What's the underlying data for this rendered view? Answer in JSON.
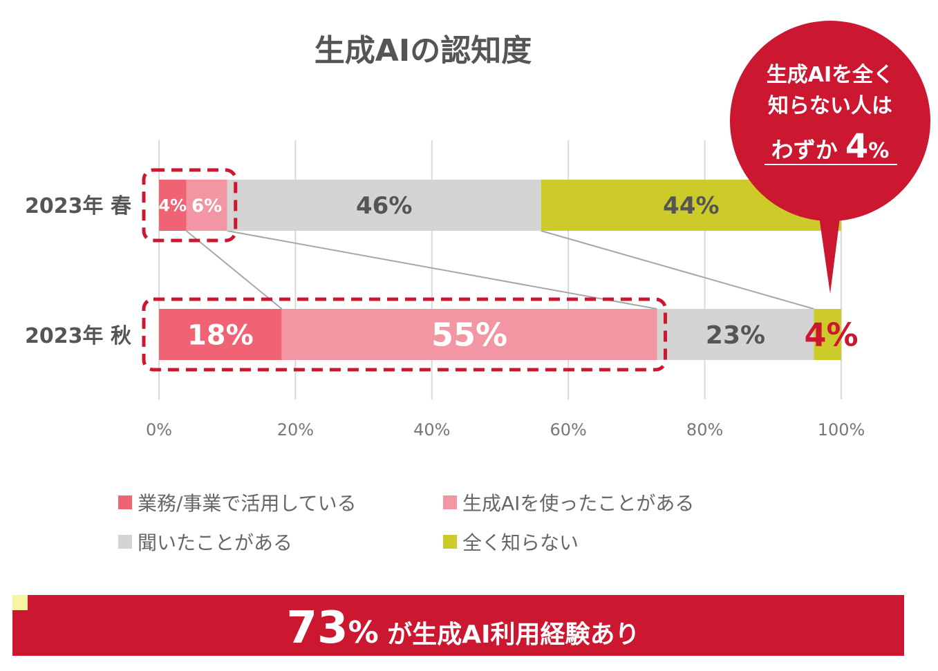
{
  "chart_data": {
    "type": "bar",
    "orientation": "horizontal",
    "stacked": true,
    "title": "生成AIの認知度",
    "categories": [
      "2023年 春",
      "2023年 秋"
    ],
    "series": [
      {
        "name": "業務/事業で活用している",
        "values": [
          4,
          18
        ],
        "color": "#f06374"
      },
      {
        "name": "生成AIを使ったことがある",
        "values": [
          6,
          55
        ],
        "color": "#f396a3"
      },
      {
        "name": "聞いたことがある",
        "values": [
          46,
          23
        ],
        "color": "#d4d4d4"
      },
      {
        "name": "全く知らない",
        "values": [
          44,
          4
        ],
        "color": "#cccb2a"
      }
    ],
    "data_labels": [
      [
        "4%",
        "6%",
        "46%",
        "44%"
      ],
      [
        "18%",
        "55%",
        "23%",
        "4%"
      ]
    ],
    "xlim": [
      0,
      100
    ],
    "x_ticks": [
      "0%",
      "20%",
      "40%",
      "60%",
      "80%",
      "100%"
    ],
    "grid": true,
    "legend": "bottom"
  },
  "callout": {
    "line1": "生成AIを全く",
    "line2": "知らない人は",
    "line3_text": "わずか",
    "line3_number": "4",
    "line3_unit": "%"
  },
  "banner": {
    "number": "73",
    "unit": "%",
    "text": "が生成AI利用経験あり"
  },
  "colors": {
    "accent_red": "#cc1731",
    "text_gray": "#555555",
    "highlight_yellow": "#f7f5a0"
  }
}
